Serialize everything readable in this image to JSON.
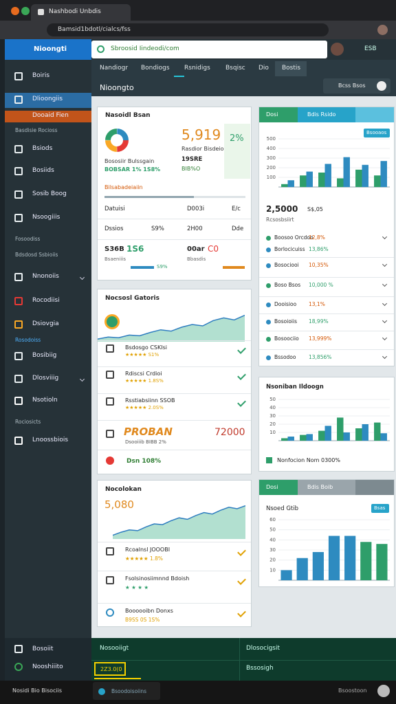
{
  "window": {
    "tab_title": "Nashbodi Unbdis"
  },
  "browser": {
    "url": "Bamsid1bdotl/cialcs/fss"
  },
  "app": {
    "name": "Nioongti",
    "search": "Sbroosid  Iindeodi/com",
    "badge": "ESB"
  },
  "sidebar": {
    "items": [
      "Boiris",
      "Dlioongiis",
      "Dooaid Fien",
      "Basdisie Rocioss",
      "Bsiods",
      "Bosiids",
      "Sosib Boog",
      "Nsoogiiis",
      "Fosoodiss",
      "Bdsdosd Ssbioiis",
      "Nnonoiis",
      "Rocodiisi",
      "Dsiovgia",
      "Rosodoiss",
      "Bosibiig",
      "Dlosviiig",
      "Nsotioln",
      "Rociosicts",
      "Lnoossbiois"
    ],
    "footer": [
      "Bosoiit",
      "Nooshiiito"
    ]
  },
  "tabs": [
    "Nandiogr",
    "Bondiogs",
    "Rsnidigs",
    "Bsqisc",
    "Dio",
    "Bostis"
  ],
  "page": {
    "title": "Nioongto",
    "search_button": "Bcss Bsos"
  },
  "summary_card": {
    "title": "Nasoidl Bsan",
    "value": "5,919",
    "change": "2%",
    "label": "Rasdior Bisdeio",
    "sub": "Bososiir Bulssgain",
    "sub_value": "BOBSAR 1% 1S8%",
    "stat_a": "19SRE",
    "stat_b": "BIB%O",
    "note": "Bilsabadeiaiin",
    "rows": [
      [
        "Datuisi",
        "D003i",
        "E/c"
      ],
      [
        "Dssios",
        "S9%",
        "2H00",
        "Dde"
      ]
    ],
    "metric_a": {
      "label": "S36B",
      "value": "1S6",
      "caption": "Bsaeniiis",
      "percent": "S9%"
    },
    "metric_b": {
      "label": "00ar",
      "value": "C0",
      "caption": "Bbasdis"
    }
  },
  "goals_card": {
    "title": "Nocsosl Gatoris",
    "trend": {
      "ylim": [
        0,
        50
      ],
      "values": [
        4,
        7,
        6,
        10,
        9,
        14,
        18,
        16,
        22,
        26,
        24,
        32,
        36,
        33,
        40
      ]
    },
    "items": [
      {
        "title": "Bsdosgo CSKIsi",
        "sub": "★★★★★ S1%"
      },
      {
        "title": "Rdiscsi Crdioi",
        "sub": "★★★★★ 1.8S%"
      },
      {
        "title": "Rsstiabsiinn SSOB",
        "sub": "★★★★★ 2.0S%"
      }
    ],
    "promo": {
      "brand": "PROBAN",
      "value": "72000",
      "sub": "Dsooiiib BIBB 2%"
    },
    "footer": "Dsn 108%"
  },
  "trend_card": {
    "title": "Nocolokan",
    "value": "5,080",
    "trend": {
      "ylim": [
        0,
        50
      ],
      "values": [
        5,
        9,
        12,
        11,
        16,
        20,
        19,
        24,
        28,
        26,
        31,
        35,
        33,
        38,
        42,
        40,
        44
      ]
    },
    "items": [
      {
        "title": "Rcoalnsl JOOOBI",
        "sub": "★★★★★ 1.8%"
      },
      {
        "title": "Fsolsinosiimnnd Bdoish",
        "sub": "★ ★ ★ ★"
      },
      {
        "title": "Boooooibn Donxs",
        "sub": "B9SS 0S 1S%"
      }
    ]
  },
  "stats_card": {
    "tab_a": "Dosi",
    "tab_b": "Bdis Rsido",
    "button": "Bsooaos",
    "chart": {
      "ylim": [
        0,
        500
      ],
      "yticks": [
        100,
        200,
        300,
        400,
        500
      ],
      "series": [
        {
          "color": "#2e9e6a",
          "values": [
            30,
            120,
            150,
            90,
            180,
            120
          ]
        },
        {
          "color": "#2e8bc0",
          "values": [
            70,
            160,
            240,
            310,
            230,
            270
          ]
        }
      ]
    },
    "total": "2,5000",
    "total_sub": "S$,05",
    "caption": "Rcsosbsiirt",
    "rows": [
      {
        "label": "Boosoo Orcdoo",
        "value": "12,8%"
      },
      {
        "label": "Borlocicuiss",
        "value": "13,86%"
      },
      {
        "label": "Bosociooi",
        "value": "10,35%"
      },
      {
        "label": "Boso Bsos",
        "value": "10,000 %"
      },
      {
        "label": "Dooisioo",
        "value": "13,1%"
      },
      {
        "label": "Bosoioiis",
        "value": "18,99%"
      },
      {
        "label": "Bosoociio",
        "value": "13,999%"
      },
      {
        "label": "Bssodoo",
        "value": "13,856%"
      }
    ]
  },
  "monthly_card": {
    "title": "Nsoniban Ildoogn",
    "chart": {
      "ylim": [
        0,
        50
      ],
      "yticks": [
        10,
        20,
        30,
        40,
        50
      ],
      "series": [
        {
          "color": "#2e9e6a",
          "values": [
            3,
            7,
            12,
            28,
            15,
            22
          ]
        },
        {
          "color": "#2e8bc0",
          "values": [
            5,
            8,
            18,
            10,
            20,
            9
          ]
        }
      ]
    },
    "legend": "Nonfocion  Nom  0300%"
  },
  "grid_card": {
    "tab_a": "Dosi",
    "tab_b": "Bdis Boib",
    "title": "Nsoed Gtib",
    "button": "Bsas",
    "chart": {
      "ylim": [
        0,
        60
      ],
      "yticks": [
        10,
        20,
        30,
        40,
        50,
        60
      ],
      "series": [
        {
          "colors": [
            "#2e8bc0",
            "#2e8bc0",
            "#2e8bc0",
            "#2e8bc0",
            "#2e8bc0",
            "#2e9e6a",
            "#2e9e6a"
          ],
          "values": [
            10,
            22,
            28,
            44,
            44,
            38,
            36
          ]
        }
      ]
    }
  },
  "bottom": {
    "left_title": "Nosooiigt",
    "right_title": "Dlosocigsit",
    "right_sub": "Bssosigh",
    "selected": "2Z3.0(0"
  },
  "taskbar": {
    "left": "Nosidi Bio Bisociis",
    "center": "Bsoodoisoiins",
    "right": "Bsoostoon"
  }
}
